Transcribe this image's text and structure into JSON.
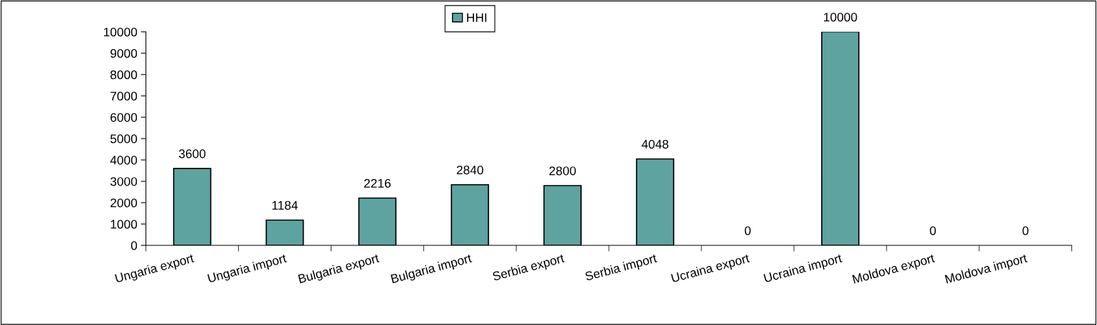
{
  "chart_data": {
    "type": "bar",
    "categories": [
      "Ungaria export",
      "Ungaria import",
      "Bulgaria export",
      "Bulgaria import",
      "Serbia export",
      "Serbia import",
      "Ucraina export",
      "Ucraina import",
      "Moldova export",
      "Moldova import"
    ],
    "series": [
      {
        "name": "HHI",
        "color": "#5fa3a0",
        "values": [
          3600,
          1184,
          2216,
          2840,
          2800,
          4048,
          0,
          10000,
          0,
          0
        ]
      }
    ],
    "ylim": [
      0,
      10000
    ],
    "yticks": [
      0,
      1000,
      2000,
      3000,
      4000,
      5000,
      6000,
      7000,
      8000,
      9000,
      10000
    ],
    "data_labels": true,
    "legend": "top",
    "grid": false
  }
}
